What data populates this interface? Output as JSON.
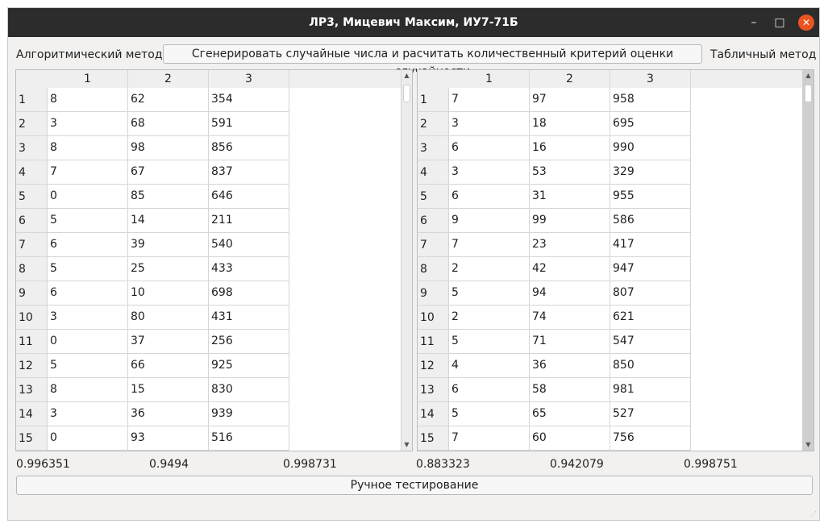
{
  "window": {
    "title": "ЛР3, Мицевич Максим, ИУ7-71Б",
    "minimize_glyph": "–",
    "maximize_glyph": "□",
    "close_glyph": "✕"
  },
  "labels": {
    "algorithmic": "Алгоритмический метод",
    "tabular": "Табличный метод"
  },
  "buttons": {
    "generate": "Сгенерировать случайные числа и расчитать количественный критерий оценки случайности",
    "manual": "Ручное тестирование"
  },
  "tables": {
    "left": {
      "columns": [
        "1",
        "2",
        "3"
      ],
      "rows": [
        {
          "n": "1",
          "cells": [
            "8",
            "62",
            "354"
          ]
        },
        {
          "n": "2",
          "cells": [
            "3",
            "68",
            "591"
          ]
        },
        {
          "n": "3",
          "cells": [
            "8",
            "98",
            "856"
          ]
        },
        {
          "n": "4",
          "cells": [
            "7",
            "67",
            "837"
          ]
        },
        {
          "n": "5",
          "cells": [
            "0",
            "85",
            "646"
          ]
        },
        {
          "n": "6",
          "cells": [
            "5",
            "14",
            "211"
          ]
        },
        {
          "n": "7",
          "cells": [
            "6",
            "39",
            "540"
          ]
        },
        {
          "n": "8",
          "cells": [
            "5",
            "25",
            "433"
          ]
        },
        {
          "n": "9",
          "cells": [
            "6",
            "10",
            "698"
          ]
        },
        {
          "n": "10",
          "cells": [
            "3",
            "80",
            "431"
          ]
        },
        {
          "n": "11",
          "cells": [
            "0",
            "37",
            "256"
          ]
        },
        {
          "n": "12",
          "cells": [
            "5",
            "66",
            "925"
          ]
        },
        {
          "n": "13",
          "cells": [
            "8",
            "15",
            "830"
          ]
        },
        {
          "n": "14",
          "cells": [
            "3",
            "36",
            "939"
          ]
        },
        {
          "n": "15",
          "cells": [
            "0",
            "93",
            "516"
          ]
        }
      ]
    },
    "right": {
      "columns": [
        "1",
        "2",
        "3"
      ],
      "rows": [
        {
          "n": "1",
          "cells": [
            "7",
            "97",
            "958"
          ]
        },
        {
          "n": "2",
          "cells": [
            "3",
            "18",
            "695"
          ]
        },
        {
          "n": "3",
          "cells": [
            "6",
            "16",
            "990"
          ]
        },
        {
          "n": "4",
          "cells": [
            "3",
            "53",
            "329"
          ]
        },
        {
          "n": "5",
          "cells": [
            "6",
            "31",
            "955"
          ]
        },
        {
          "n": "6",
          "cells": [
            "9",
            "99",
            "586"
          ]
        },
        {
          "n": "7",
          "cells": [
            "7",
            "23",
            "417"
          ]
        },
        {
          "n": "8",
          "cells": [
            "2",
            "42",
            "947"
          ]
        },
        {
          "n": "9",
          "cells": [
            "5",
            "94",
            "807"
          ]
        },
        {
          "n": "10",
          "cells": [
            "2",
            "74",
            "621"
          ]
        },
        {
          "n": "11",
          "cells": [
            "5",
            "71",
            "547"
          ]
        },
        {
          "n": "12",
          "cells": [
            "4",
            "36",
            "850"
          ]
        },
        {
          "n": "13",
          "cells": [
            "6",
            "58",
            "981"
          ]
        },
        {
          "n": "14",
          "cells": [
            "5",
            "65",
            "527"
          ]
        },
        {
          "n": "15",
          "cells": [
            "7",
            "60",
            "756"
          ]
        }
      ]
    }
  },
  "results": {
    "left": [
      "0.996351",
      "0.9494",
      "0.998731"
    ],
    "right": [
      "0.883323",
      "0.942079",
      "0.998751"
    ]
  },
  "colors": {
    "titlebar": "#2c2c2c",
    "close_button": "#e95420",
    "window_bg": "#f2f1f0"
  }
}
